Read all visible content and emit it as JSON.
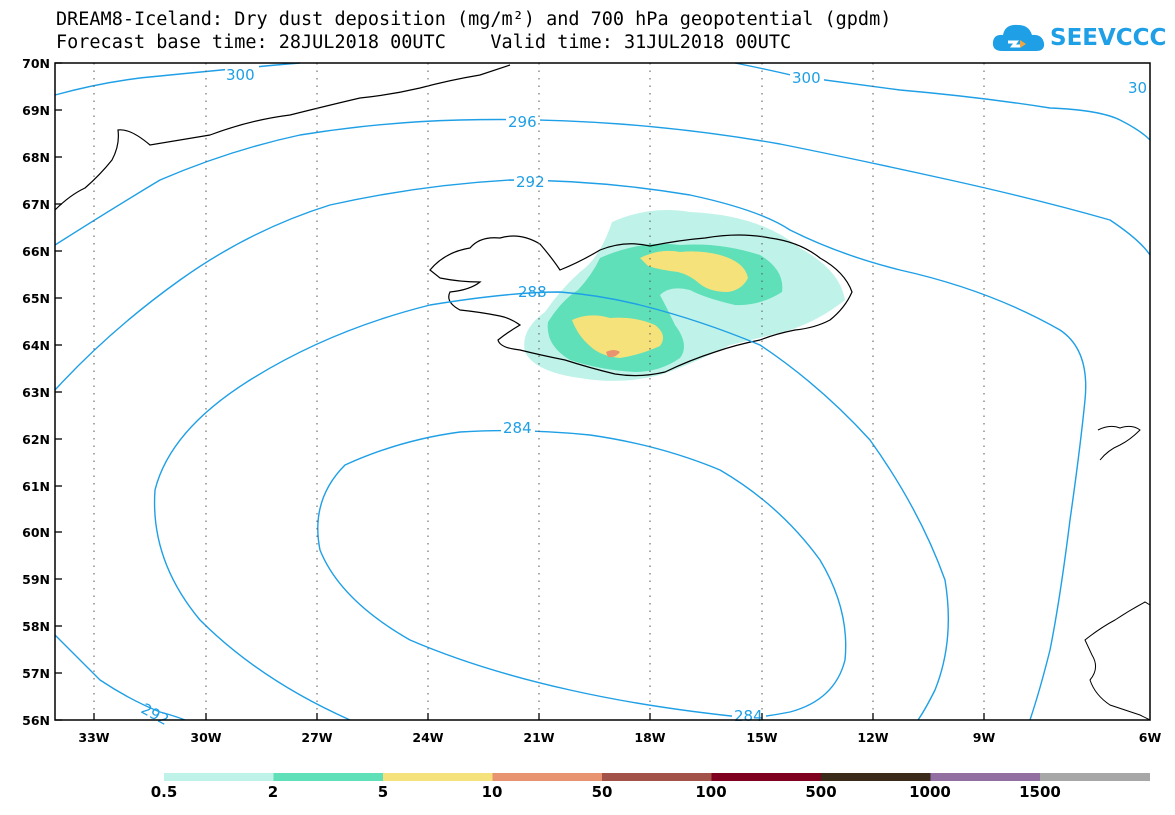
{
  "title_line1": "DREAM8-Iceland: Dry dust deposition (mg/m²) and 700 hPa geopotential (gpdm)",
  "title_line2": "Forecast base time: 28JUL2018 00UTC    Valid time: 31JUL2018 00UTC",
  "logo_text": "SEEVCCC",
  "map": {
    "lat_labels": [
      "70N",
      "69N",
      "68N",
      "67N",
      "66N",
      "65N",
      "64N",
      "63N",
      "62N",
      "61N",
      "60N",
      "59N",
      "58N",
      "57N",
      "56N"
    ],
    "lon_labels": [
      "33W",
      "30W",
      "27W",
      "24W",
      "21W",
      "18W",
      "15W",
      "12W",
      "9W",
      "6W"
    ],
    "contours": [
      {
        "level": 300,
        "labels": [
          "300",
          "300",
          "30"
        ]
      },
      {
        "level": 296,
        "labels": [
          "296"
        ]
      },
      {
        "level": 292,
        "labels": [
          "292",
          "292"
        ]
      },
      {
        "level": 288,
        "labels": [
          "288"
        ]
      },
      {
        "level": 284,
        "labels": [
          "284",
          "284"
        ]
      }
    ],
    "contour_color": "#1e9fe6"
  },
  "legend": {
    "colors": [
      "#bff2e8",
      "#5fe0b9",
      "#f5e27a",
      "#e89470",
      "#a3524a",
      "#800020",
      "#3a2a1a",
      "#916fa0",
      "#a7a7a7"
    ],
    "labels": [
      "0.5",
      "2",
      "5",
      "10",
      "50",
      "100",
      "500",
      "1000",
      "1500"
    ]
  }
}
